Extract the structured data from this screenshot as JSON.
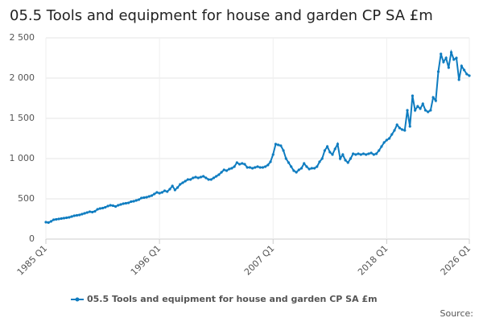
{
  "chart_data": {
    "type": "line",
    "title": "05.5 Tools and equipment for house and garden CP SA £m",
    "source": "Source:",
    "categories": [
      "1985 Q1",
      null,
      null,
      null,
      null,
      null,
      null,
      null,
      null,
      null,
      null,
      null,
      null,
      null,
      null,
      null,
      null,
      null,
      null,
      null,
      null,
      null,
      null,
      null,
      null,
      null,
      null,
      null,
      null,
      null,
      null,
      null,
      null,
      null,
      null,
      null,
      null,
      null,
      null,
      null,
      null,
      null,
      null,
      null,
      "1996 Q1",
      null,
      null,
      null,
      null,
      null,
      null,
      null,
      null,
      null,
      null,
      null,
      null,
      null,
      null,
      null,
      null,
      null,
      null,
      null,
      null,
      null,
      null,
      null,
      null,
      null,
      null,
      null,
      null,
      null,
      null,
      null,
      null,
      null,
      null,
      null,
      null,
      null,
      null,
      null,
      null,
      null,
      null,
      null,
      "2007 Q1",
      null,
      null,
      null,
      null,
      null,
      null,
      null,
      null,
      null,
      null,
      null,
      null,
      null,
      null,
      null,
      null,
      null,
      null,
      null,
      null,
      null,
      null,
      null,
      null,
      null,
      null,
      null,
      null,
      null,
      null,
      null,
      null,
      null,
      null,
      null,
      null,
      null,
      null,
      null,
      null,
      null,
      null,
      null,
      "2018 Q1",
      null,
      null,
      null,
      null,
      null,
      null,
      null,
      null,
      null,
      null,
      null,
      null,
      null,
      null,
      null,
      null,
      null,
      null,
      null,
      null,
      null,
      null,
      null,
      null,
      null,
      null,
      null,
      null,
      null,
      null,
      null,
      "2026 Q1"
    ],
    "series": [
      {
        "name": "05.5 Tools and equipment for house and garden CP SA £m",
        "color": "#0e7cc0",
        "values": [
          210,
          205,
          220,
          240,
          245,
          250,
          255,
          260,
          265,
          270,
          280,
          290,
          295,
          300,
          310,
          320,
          330,
          340,
          335,
          345,
          370,
          380,
          385,
          395,
          410,
          420,
          415,
          405,
          420,
          430,
          440,
          445,
          450,
          465,
          470,
          480,
          490,
          510,
          515,
          520,
          530,
          540,
          560,
          580,
          570,
          580,
          600,
          590,
          620,
          660,
          610,
          640,
          680,
          700,
          720,
          740,
          740,
          760,
          770,
          760,
          770,
          780,
          760,
          740,
          740,
          760,
          780,
          800,
          830,
          860,
          850,
          870,
          880,
          900,
          950,
          930,
          940,
          930,
          890,
          890,
          880,
          890,
          900,
          890,
          890,
          900,
          920,
          960,
          1050,
          1180,
          1170,
          1160,
          1100,
          1000,
          950,
          900,
          850,
          830,
          860,
          880,
          940,
          900,
          870,
          880,
          880,
          900,
          960,
          1000,
          1100,
          1150,
          1080,
          1050,
          1120,
          1180,
          1000,
          1050,
          980,
          950,
          1000,
          1060,
          1050,
          1060,
          1050,
          1060,
          1050,
          1060,
          1070,
          1050,
          1060,
          1100,
          1150,
          1200,
          1230,
          1250,
          1300,
          1350,
          1420,
          1380,
          1360,
          1350,
          1600,
          1400,
          1780,
          1600,
          1650,
          1620,
          1680,
          1600,
          1580,
          1600,
          1760,
          1720,
          2080,
          2300,
          2200,
          2250,
          2130,
          2320,
          2230,
          2250,
          1980,
          2150,
          2100,
          2050,
          2030
        ]
      }
    ],
    "ylim": [
      0,
      2500
    ],
    "yticks": [
      0,
      500,
      {
        "value": 1000,
        "label": "1 000"
      },
      {
        "value": 1500,
        "label": "1 500"
      },
      {
        "value": 2000,
        "label": "2 000"
      },
      {
        "value": 2500,
        "label": "2 500"
      }
    ],
    "grid": true
  }
}
